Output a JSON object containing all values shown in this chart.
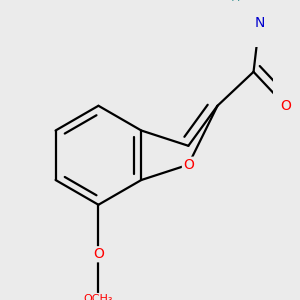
{
  "bg_color": "#ececec",
  "bond_color": "#000000",
  "bond_width": 1.6,
  "dbo": 0.055,
  "atom_colors": {
    "O": "#ff0000",
    "N": "#0000cd",
    "H": "#4a9a9a"
  },
  "font_size": 10,
  "fig_bg": "#ebebeb"
}
